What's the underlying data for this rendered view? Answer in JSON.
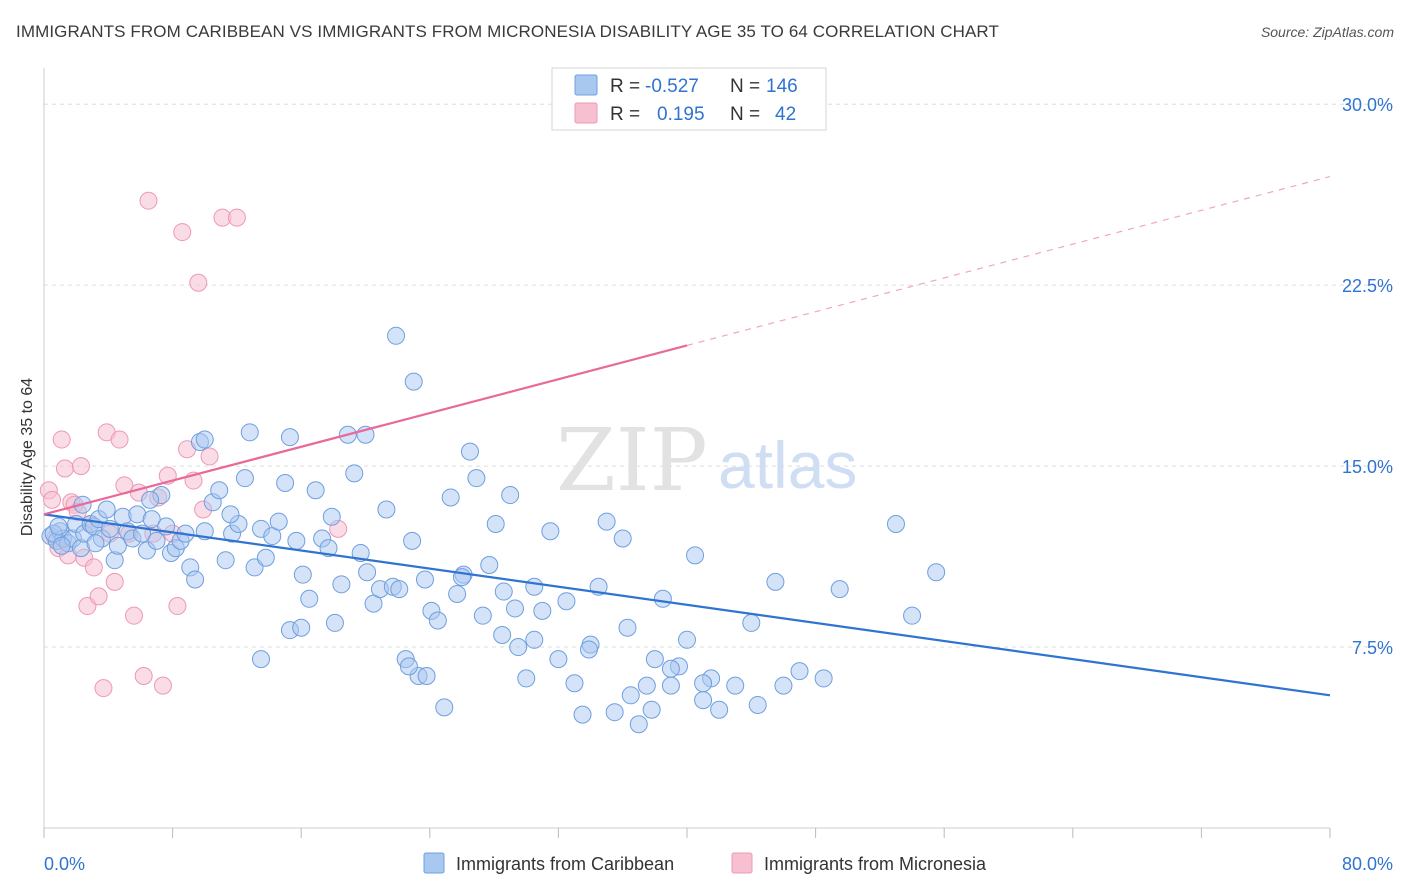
{
  "header": {
    "title": "IMMIGRANTS FROM CARIBBEAN VS IMMIGRANTS FROM MICRONESIA DISABILITY AGE 35 TO 64 CORRELATION CHART",
    "source": "Source: ZipAtlas.com"
  },
  "watermark": {
    "zip": "ZIP",
    "atlas": "atlas"
  },
  "colors": {
    "caribbean_fill": "#a9c8f0",
    "caribbean_stroke": "#6f9fe0",
    "caribbean_line": "#2f74d0",
    "micronesia_fill": "#f6c0d1",
    "micronesia_stroke": "#ee98b5",
    "micronesia_line": "#e8699a",
    "value_text": "#2f74d0",
    "grid": "#dddddd"
  },
  "legend_top": {
    "rows": [
      {
        "r_label": "R =",
        "r_value": "-0.527",
        "n_label": "N =",
        "n_value": "146"
      },
      {
        "r_label": "R =",
        "r_value": "0.195",
        "n_label": "N =",
        "n_value": "42"
      }
    ]
  },
  "chart_data": {
    "type": "scatter",
    "title": "IMMIGRANTS FROM CARIBBEAN VS IMMIGRANTS FROM MICRONESIA DISABILITY AGE 35 TO 64 CORRELATION CHART",
    "xlabel": "",
    "ylabel": "Disability Age 35 to 64",
    "xlim": [
      0,
      80
    ],
    "ylim": [
      0,
      31.5
    ],
    "x_tick_labels": [
      "0.0%",
      "80.0%"
    ],
    "y_ticks": [
      7.5,
      15.0,
      22.5,
      30.0
    ],
    "y_tick_labels": [
      "7.5%",
      "15.0%",
      "22.5%",
      "30.0%"
    ],
    "grid": true,
    "legend_position": "bottom-center",
    "series": [
      {
        "name": "Immigrants from Caribbean",
        "r": -0.527,
        "n": 146,
        "trend": {
          "x": [
            0,
            80
          ],
          "y": [
            13.0,
            5.5
          ]
        },
        "points": [
          [
            0.4,
            12.1
          ],
          [
            0.8,
            11.9
          ],
          [
            1.0,
            12.3
          ],
          [
            1.2,
            12.0
          ],
          [
            1.5,
            11.8
          ],
          [
            1.8,
            12.0
          ],
          [
            2.0,
            12.6
          ],
          [
            2.3,
            11.6
          ],
          [
            2.5,
            12.2
          ],
          [
            2.9,
            12.6
          ],
          [
            3.1,
            12.5
          ],
          [
            3.4,
            12.8
          ],
          [
            3.6,
            12.0
          ],
          [
            3.9,
            13.2
          ],
          [
            4.1,
            12.4
          ],
          [
            4.4,
            11.1
          ],
          [
            4.6,
            11.7
          ],
          [
            4.9,
            12.9
          ],
          [
            5.2,
            12.3
          ],
          [
            5.5,
            12.0
          ],
          [
            5.8,
            13.0
          ],
          [
            6.1,
            12.2
          ],
          [
            6.4,
            11.5
          ],
          [
            6.7,
            12.8
          ],
          [
            7.0,
            11.9
          ],
          [
            7.3,
            13.8
          ],
          [
            7.6,
            12.5
          ],
          [
            7.9,
            11.4
          ],
          [
            8.2,
            11.6
          ],
          [
            8.5,
            11.9
          ],
          [
            8.8,
            12.2
          ],
          [
            9.1,
            10.8
          ],
          [
            9.4,
            10.3
          ],
          [
            9.7,
            16.0
          ],
          [
            10.0,
            12.3
          ],
          [
            10.5,
            13.5
          ],
          [
            10.9,
            14.0
          ],
          [
            11.3,
            11.1
          ],
          [
            11.7,
            12.2
          ],
          [
            12.1,
            12.6
          ],
          [
            12.5,
            14.5
          ],
          [
            12.8,
            16.4
          ],
          [
            13.1,
            10.8
          ],
          [
            13.5,
            12.4
          ],
          [
            13.8,
            11.2
          ],
          [
            14.2,
            12.1
          ],
          [
            14.6,
            12.7
          ],
          [
            15.0,
            14.3
          ],
          [
            15.3,
            8.2
          ],
          [
            15.7,
            11.9
          ],
          [
            16.1,
            10.5
          ],
          [
            16.5,
            9.5
          ],
          [
            16.9,
            14.0
          ],
          [
            17.3,
            12.0
          ],
          [
            17.7,
            11.6
          ],
          [
            18.1,
            8.5
          ],
          [
            18.5,
            10.1
          ],
          [
            18.9,
            16.3
          ],
          [
            19.3,
            14.7
          ],
          [
            19.7,
            11.4
          ],
          [
            20.1,
            10.6
          ],
          [
            20.5,
            9.3
          ],
          [
            20.9,
            9.9
          ],
          [
            21.3,
            13.2
          ],
          [
            21.7,
            10.0
          ],
          [
            22.1,
            9.9
          ],
          [
            22.5,
            7.0
          ],
          [
            22.9,
            11.9
          ],
          [
            23.3,
            6.3
          ],
          [
            23.7,
            10.3
          ],
          [
            24.1,
            9.0
          ],
          [
            24.5,
            8.6
          ],
          [
            24.9,
            5.0
          ],
          [
            25.3,
            13.7
          ],
          [
            25.7,
            9.7
          ],
          [
            26.1,
            10.5
          ],
          [
            26.5,
            15.6
          ],
          [
            26.9,
            14.5
          ],
          [
            27.3,
            8.8
          ],
          [
            27.7,
            10.9
          ],
          [
            28.1,
            12.6
          ],
          [
            28.5,
            8.0
          ],
          [
            29.0,
            13.8
          ],
          [
            29.5,
            7.5
          ],
          [
            30.0,
            6.2
          ],
          [
            30.5,
            10.0
          ],
          [
            31.0,
            9.0
          ],
          [
            31.5,
            12.3
          ],
          [
            32.0,
            7.0
          ],
          [
            32.5,
            9.4
          ],
          [
            33.0,
            6.0
          ],
          [
            33.5,
            4.7
          ],
          [
            34.0,
            7.6
          ],
          [
            34.5,
            10.0
          ],
          [
            35.0,
            12.7
          ],
          [
            35.5,
            4.8
          ],
          [
            36.0,
            12.0
          ],
          [
            36.5,
            5.5
          ],
          [
            37.0,
            4.3
          ],
          [
            37.5,
            5.9
          ],
          [
            38.0,
            7.0
          ],
          [
            38.5,
            9.5
          ],
          [
            39.0,
            5.9
          ],
          [
            39.5,
            6.7
          ],
          [
            40.0,
            7.8
          ],
          [
            40.5,
            11.3
          ],
          [
            41.0,
            5.3
          ],
          [
            41.5,
            6.2
          ],
          [
            42.0,
            4.9
          ],
          [
            43.0,
            5.9
          ],
          [
            44.0,
            8.5
          ],
          [
            45.5,
            10.2
          ],
          [
            46.0,
            5.9
          ],
          [
            47.0,
            6.5
          ],
          [
            48.5,
            6.2
          ],
          [
            49.5,
            9.9
          ],
          [
            53.0,
            12.6
          ],
          [
            54.0,
            8.8
          ],
          [
            55.5,
            10.6
          ],
          [
            23.8,
            6.3
          ],
          [
            0.6,
            12.2
          ],
          [
            1.1,
            11.7
          ],
          [
            13.5,
            7.0
          ],
          [
            16.0,
            8.3
          ],
          [
            26.0,
            10.4
          ],
          [
            30.5,
            7.8
          ],
          [
            36.3,
            8.3
          ],
          [
            33.9,
            7.4
          ],
          [
            28.6,
            9.8
          ],
          [
            22.7,
            6.7
          ],
          [
            44.4,
            5.1
          ],
          [
            41.0,
            6.0
          ],
          [
            39.0,
            6.6
          ],
          [
            20.0,
            16.3
          ],
          [
            10.0,
            16.1
          ],
          [
            11.6,
            13.0
          ],
          [
            6.6,
            13.6
          ],
          [
            17.9,
            12.9
          ],
          [
            0.9,
            12.5
          ],
          [
            2.4,
            13.4
          ],
          [
            3.2,
            11.8
          ],
          [
            15.3,
            16.2
          ],
          [
            23.0,
            18.5
          ],
          [
            21.9,
            20.4
          ],
          [
            29.3,
            9.1
          ],
          [
            37.8,
            4.9
          ]
        ]
      },
      {
        "name": "Immigrants from Micronesia",
        "r": 0.195,
        "n": 42,
        "trend": {
          "x": [
            0,
            80
          ],
          "y": [
            13.0,
            27.0
          ]
        },
        "trend_solid_end_x": 40,
        "points": [
          [
            0.3,
            14.0
          ],
          [
            0.5,
            13.6
          ],
          [
            0.7,
            12.0
          ],
          [
            0.9,
            11.6
          ],
          [
            1.1,
            16.1
          ],
          [
            1.3,
            14.9
          ],
          [
            1.5,
            11.3
          ],
          [
            1.7,
            13.5
          ],
          [
            1.9,
            13.4
          ],
          [
            2.1,
            13.1
          ],
          [
            2.3,
            15.0
          ],
          [
            2.5,
            11.2
          ],
          [
            2.7,
            9.2
          ],
          [
            2.9,
            12.6
          ],
          [
            3.1,
            10.8
          ],
          [
            3.4,
            9.6
          ],
          [
            3.7,
            5.8
          ],
          [
            3.9,
            16.4
          ],
          [
            4.1,
            12.2
          ],
          [
            4.4,
            10.2
          ],
          [
            4.7,
            16.1
          ],
          [
            5.0,
            14.2
          ],
          [
            5.3,
            12.2
          ],
          [
            5.6,
            8.8
          ],
          [
            5.9,
            13.9
          ],
          [
            6.2,
            6.3
          ],
          [
            6.5,
            26.0
          ],
          [
            6.8,
            12.2
          ],
          [
            7.1,
            13.7
          ],
          [
            7.4,
            5.9
          ],
          [
            7.7,
            14.6
          ],
          [
            8.0,
            12.2
          ],
          [
            8.3,
            9.2
          ],
          [
            8.6,
            24.7
          ],
          [
            8.9,
            15.7
          ],
          [
            9.3,
            14.4
          ],
          [
            9.6,
            22.6
          ],
          [
            9.9,
            13.2
          ],
          [
            10.3,
            15.4
          ],
          [
            11.1,
            25.3
          ],
          [
            12.0,
            25.3
          ],
          [
            18.3,
            12.4
          ]
        ]
      }
    ]
  },
  "legend_bottom": {
    "items": [
      {
        "label": "Immigrants from Caribbean"
      },
      {
        "label": "Immigrants from Micronesia"
      }
    ]
  }
}
